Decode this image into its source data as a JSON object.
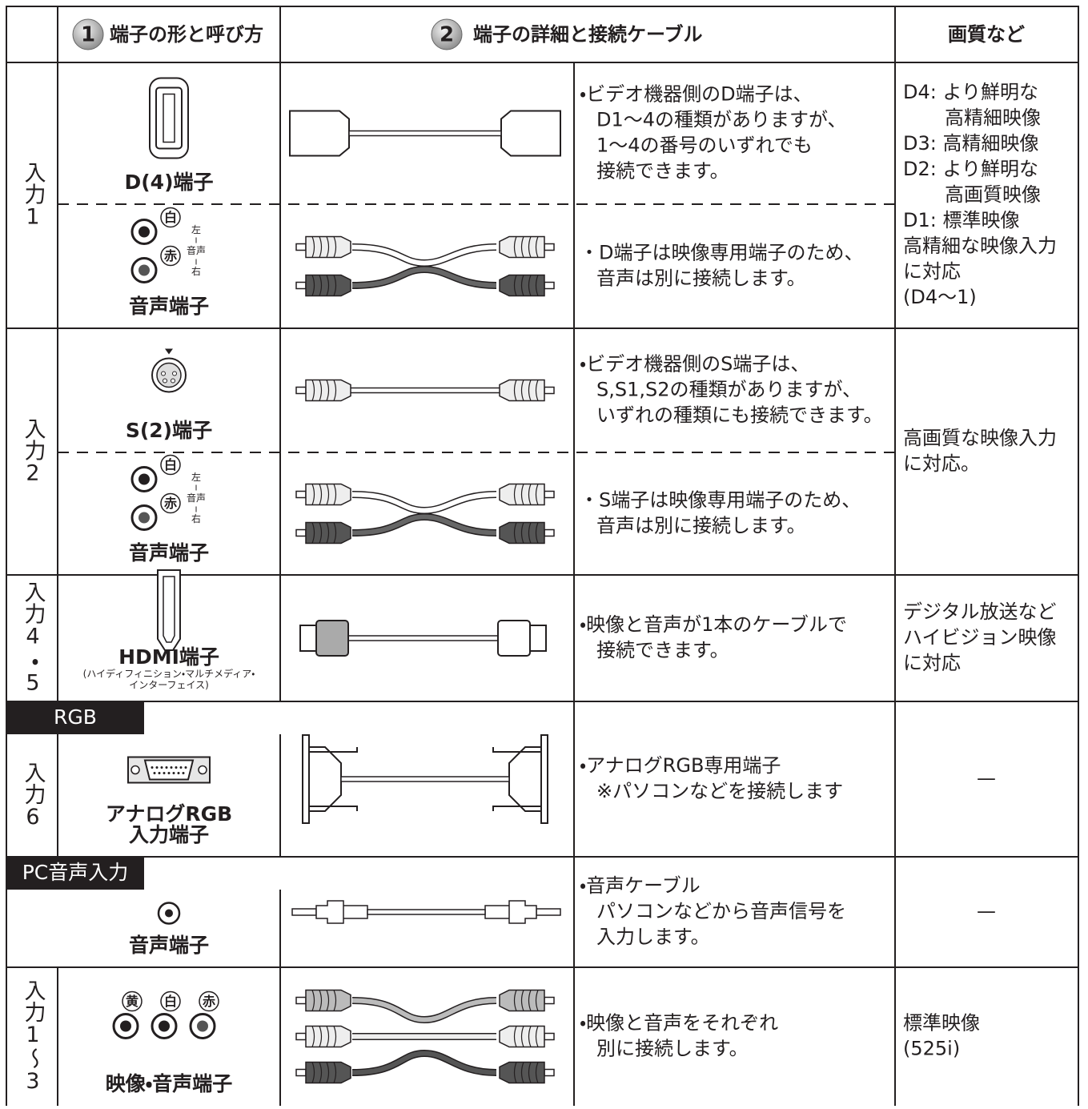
{
  "header": {
    "col1_number": "1",
    "col1": "端子の形と呼び方",
    "col2_number": "2",
    "col2": "端子の詳細と接続ケーブル",
    "col3": "画質など"
  },
  "rows": [
    {
      "input": "入力1",
      "parts": [
        {
          "terminal": [
            "D(4)端子"
          ],
          "description": [
            "・ビデオ機器側のD端子は、",
            "D1〜4の種類がありますが、",
            "1〜4の番号のいずれでも",
            "接続できます。"
          ]
        },
        {
          "terminal": [
            "音声端子"
          ],
          "jacks": [
            "白",
            "赤"
          ],
          "channel": [
            "左",
            "音声",
            "右"
          ],
          "description": [
            "・D端子は映像専用端子のため、",
            "音声は別に接続します。"
          ]
        }
      ],
      "quality": [
        "D4: より鮮明な",
        "高精細映像",
        "D3: 高精細映像",
        "D2: より鮮明な",
        "高画質映像",
        "D1: 標準映像",
        "高精細な映像入力",
        "に対応",
        "(D4〜1)"
      ]
    },
    {
      "input": "入力2",
      "parts": [
        {
          "terminal": [
            "S(2)端子"
          ],
          "description": [
            "・ビデオ機器側のS端子は、",
            "S,S1,S2の種類がありますが、",
            "いずれの種類にも接続できます。"
          ]
        },
        {
          "terminal": [
            "音声端子"
          ],
          "jacks": [
            "白",
            "赤"
          ],
          "channel": [
            "左",
            "音声",
            "右"
          ],
          "description": [
            "・S端子は映像専用端子のため、",
            "音声は別に接続します。"
          ]
        }
      ],
      "quality": [
        "高画質な映像入力",
        "に対応。"
      ]
    },
    {
      "input": "入力4・5",
      "parts": [
        {
          "terminal": [
            "HDMI端子"
          ],
          "note": [
            "(ハイディフィニション・マルチメディア・",
            "インターフェイス)"
          ],
          "description": [
            "・映像と音声が1本のケーブルで",
            "接続できます。"
          ]
        }
      ],
      "quality": [
        "デジタル放送など",
        "ハイビジョン映像",
        "に対応"
      ]
    },
    {
      "banner": "RGB",
      "input": "入力6",
      "parts": [
        {
          "terminal": [
            "アナログRGB",
            "入力端子"
          ],
          "description": [
            "・アナログRGB専用端子",
            "※パソコンなどを接続します"
          ]
        }
      ],
      "quality": [
        "—"
      ]
    },
    {
      "banner": "PC音声入力",
      "parts": [
        {
          "terminal": [
            "音声端子"
          ],
          "description": [
            "・音声ケーブル",
            "パソコンなどから音声信号を",
            "入力します。"
          ]
        }
      ],
      "quality": [
        "—"
      ]
    },
    {
      "input": "入力1〜3",
      "parts": [
        {
          "terminal": [
            "映像・音声端子"
          ],
          "jacks": [
            "黄",
            "白",
            "赤"
          ],
          "description": [
            "・映像と音声をそれぞれ",
            "別に接続します。"
          ]
        }
      ],
      "quality": [
        "標準映像",
        "(525i)"
      ]
    }
  ]
}
